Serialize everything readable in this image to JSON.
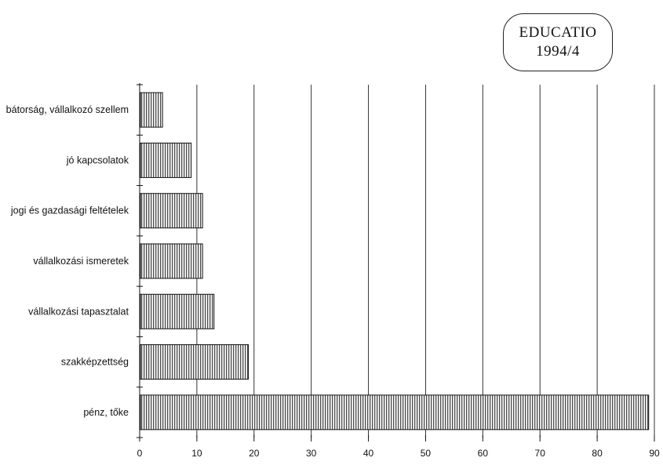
{
  "badge": {
    "line1": "EDUCATIO",
    "line2": "1994/4"
  },
  "chart_data": {
    "type": "bar",
    "orientation": "horizontal",
    "categories": [
      "bátorság, vállalkozó szellem",
      "jó kapcsolatok",
      "jogi és gazdasági feltételek",
      "vállalkozási ismeretek",
      "vállalkozási tapasztalat",
      "szakképzettség",
      "pénz, tőke"
    ],
    "values": [
      4,
      9,
      11,
      11,
      13,
      19,
      89
    ],
    "xlim": [
      0,
      90
    ],
    "x_ticks": [
      0,
      10,
      20,
      30,
      40,
      50,
      60,
      70,
      80,
      90
    ],
    "grid": "vertical",
    "title": "",
    "xlabel": "",
    "ylabel": "",
    "bar_fill": "vertical-hatch",
    "colors": {
      "bar_line": "#111111",
      "grid": "#333333"
    }
  }
}
